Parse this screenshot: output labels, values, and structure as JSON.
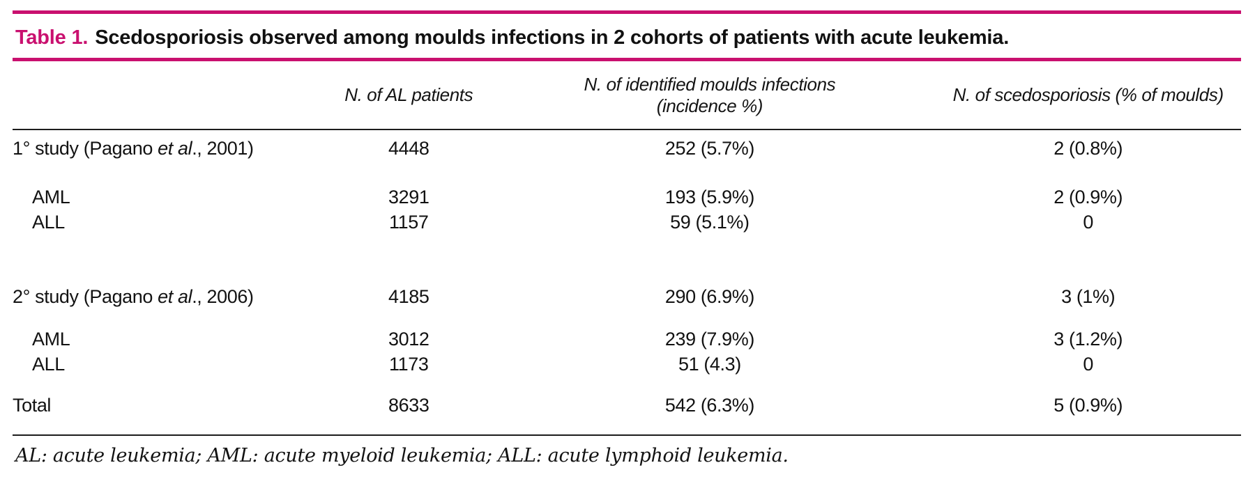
{
  "colors": {
    "accent": "#c9106f"
  },
  "title": {
    "label": "Table 1.",
    "text": "Scedosporiosis observed among moulds infections in 2 cohorts of patients with acute leukemia."
  },
  "table": {
    "columns": [
      "",
      "N. of AL patients",
      "N. of identified moulds infections (incidence %)",
      "N. of scedosporiosis (% of moulds)"
    ],
    "rows": [
      {
        "label_pre": "1° study (Pagano ",
        "label_it": "et al",
        "label_post": "., 2001)",
        "al": "4448",
        "moulds": "252 (5.7%)",
        "scedo": "2 (0.8%)"
      },
      {
        "label_pre": "AML",
        "label_it": "",
        "label_post": "",
        "al": "3291",
        "moulds": "193 (5.9%)",
        "scedo": "2 (0.9%)"
      },
      {
        "label_pre": "ALL",
        "label_it": "",
        "label_post": "",
        "al": "1157",
        "moulds": "59 (5.1%)",
        "scedo": "0"
      },
      {
        "label_pre": "2° study (Pagano ",
        "label_it": "et al",
        "label_post": "., 2006)",
        "al": "4185",
        "moulds": "290 (6.9%)",
        "scedo": "3 (1%)"
      },
      {
        "label_pre": "AML",
        "label_it": "",
        "label_post": "",
        "al": "3012",
        "moulds": "239 (7.9%)",
        "scedo": "3 (1.2%)"
      },
      {
        "label_pre": "ALL",
        "label_it": "",
        "label_post": "",
        "al": "1173",
        "moulds": "51 (4.3)",
        "scedo": "0"
      },
      {
        "label_pre": "Total",
        "label_it": "",
        "label_post": "",
        "al": "8633",
        "moulds": "542 (6.3%)",
        "scedo": "5 (0.9%)"
      }
    ]
  },
  "footnote": "AL: acute leukemia; AML: acute myeloid leukemia; ALL: acute lymphoid leukemia."
}
